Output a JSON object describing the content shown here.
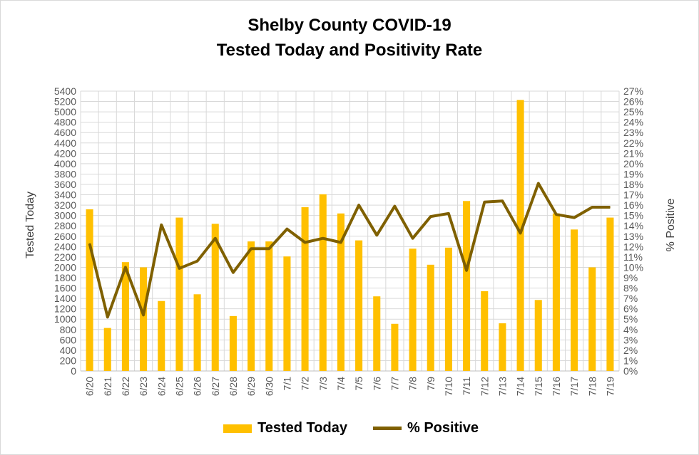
{
  "chart_data": {
    "type": "bar+line",
    "title": "Shelby County COVID-19",
    "subtitle": "Tested Today and Positivity Rate",
    "ylabel": "Tested Today",
    "y2label": "% Positive",
    "ylim": [
      0,
      5400
    ],
    "y2lim": [
      0,
      27
    ],
    "yticks": [
      "0",
      "200",
      "400",
      "600",
      "800",
      "1000",
      "1200",
      "1400",
      "1600",
      "1800",
      "2000",
      "2200",
      "2400",
      "2600",
      "2800",
      "3000",
      "3200",
      "3400",
      "3600",
      "3800",
      "4000",
      "4200",
      "4400",
      "4600",
      "4800",
      "5000",
      "5200",
      "5400"
    ],
    "y2ticks": [
      "0%",
      "1%",
      "2%",
      "3%",
      "4%",
      "5%",
      "6%",
      "7%",
      "8%",
      "9%",
      "10%",
      "11%",
      "12%",
      "13%",
      "14%",
      "15%",
      "16%",
      "17%",
      "18%",
      "19%",
      "20%",
      "21%",
      "22%",
      "23%",
      "24%",
      "25%",
      "26%",
      "27%"
    ],
    "categories": [
      "6/20",
      "6/21",
      "6/22",
      "6/23",
      "6/24",
      "6/25",
      "6/26",
      "6/27",
      "6/28",
      "6/29",
      "6/30",
      "7/1",
      "7/2",
      "7/3",
      "7/4",
      "7/5",
      "7/6",
      "7/7",
      "7/8",
      "7/9",
      "7/10",
      "7/11",
      "7/12",
      "7/13",
      "7/14",
      "7/15",
      "7/16",
      "7/17",
      "7/18",
      "7/19"
    ],
    "series": [
      {
        "name": "Tested Today",
        "type": "bar",
        "color": "#FFC000",
        "values": [
          3120,
          830,
          2100,
          2000,
          1350,
          2960,
          1480,
          2840,
          1060,
          2500,
          2500,
          2210,
          3160,
          3410,
          3040,
          2520,
          1440,
          910,
          2360,
          2050,
          2380,
          3280,
          1540,
          920,
          5230,
          1370,
          3040,
          2730,
          2000,
          2960
        ]
      },
      {
        "name": "% Positive",
        "type": "line",
        "color": "#7F6000",
        "values": [
          12.3,
          5.2,
          10.0,
          5.4,
          14.1,
          9.9,
          10.6,
          12.8,
          9.5,
          11.8,
          11.8,
          13.7,
          12.4,
          12.8,
          12.4,
          16.0,
          13.1,
          15.9,
          12.8,
          14.9,
          15.2,
          9.7,
          16.3,
          16.4,
          13.3,
          18.1,
          15.1,
          14.8,
          15.8,
          15.8
        ]
      }
    ],
    "legend_position": "bottom",
    "grid": true
  }
}
